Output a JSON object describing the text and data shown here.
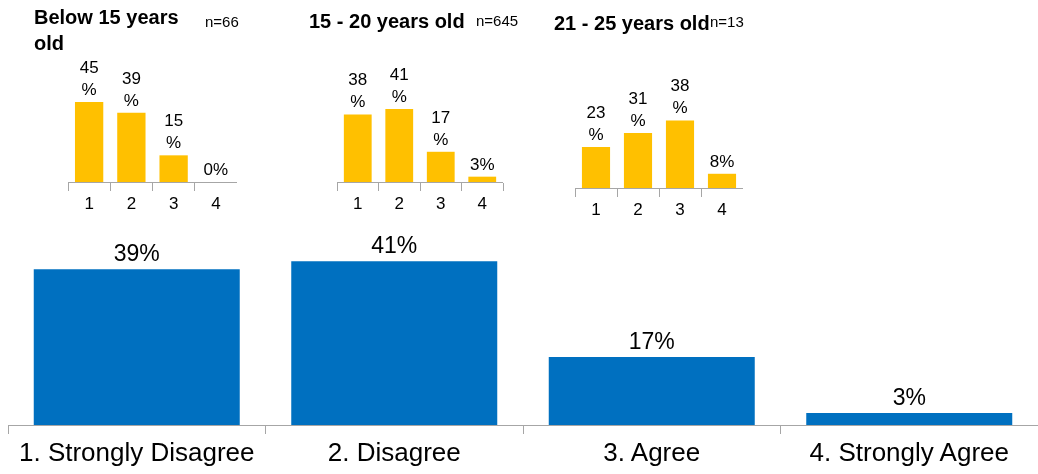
{
  "chart_data": [
    {
      "type": "bar",
      "title": "Below 15 years old",
      "annotations": [
        "n=66"
      ],
      "categories": [
        "1",
        "2",
        "3",
        "4"
      ],
      "values": [
        45,
        39,
        15,
        0
      ],
      "value_labels": [
        "45%",
        "39%",
        "15%",
        "0%"
      ],
      "color": "#ffc000",
      "tick_labels": "x"
    },
    {
      "type": "bar",
      "title": "15 - 20 years old",
      "annotations": [
        "n=645"
      ],
      "categories": [
        "1",
        "2",
        "3",
        "4"
      ],
      "values": [
        38,
        41,
        17,
        3
      ],
      "value_labels": [
        "38%",
        "41%",
        "17%",
        "3%"
      ],
      "color": "#ffc000",
      "tick_labels": "x"
    },
    {
      "type": "bar",
      "title": "21 - 25 years old",
      "annotations": [
        "n=13"
      ],
      "categories": [
        "1",
        "2",
        "3",
        "4"
      ],
      "values": [
        23,
        31,
        38,
        8
      ],
      "value_labels": [
        "23%",
        "31%",
        "38%",
        "8%"
      ],
      "color": "#ffc000",
      "tick_labels": "x"
    },
    {
      "type": "bar",
      "categories": [
        "1. Strongly Disagree",
        "2. Disagree",
        "3. Agree",
        "4. Strongly Agree"
      ],
      "values": [
        39,
        41,
        17,
        3
      ],
      "value_labels": [
        "39%",
        "41%",
        "17%",
        "3%"
      ],
      "color": "#0070c0",
      "tick_labels": "x"
    }
  ]
}
